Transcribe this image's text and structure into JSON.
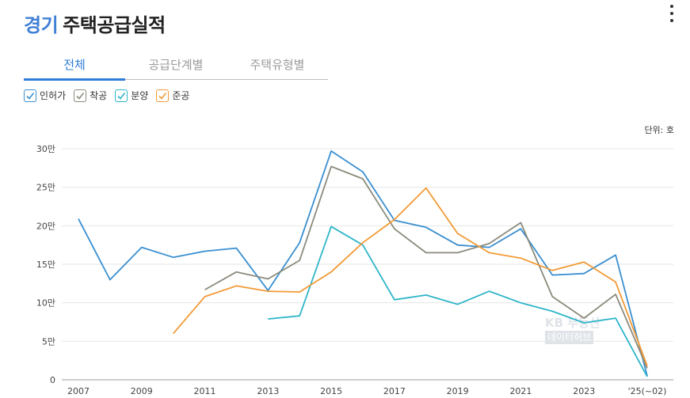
{
  "header": {
    "region": "경기",
    "title": "주택공급실적"
  },
  "tabs": [
    {
      "label": "전체",
      "active": true
    },
    {
      "label": "공급단계별",
      "active": false
    },
    {
      "label": "주택유형별",
      "active": false
    }
  ],
  "legend": [
    {
      "label": "인허가",
      "color": "#3a8fd0",
      "checked": true
    },
    {
      "label": "착공",
      "color": "#8c8a7c",
      "checked": true
    },
    {
      "label": "분양",
      "color": "#2fb5c9",
      "checked": true
    },
    {
      "label": "준공",
      "color": "#f29a35",
      "checked": true
    }
  ],
  "unit_label": "단위: 호",
  "watermark": {
    "line1": "KB 부동산",
    "line2": "데이터허브"
  },
  "chart_data": {
    "type": "line",
    "x": [
      "2007",
      "2008",
      "2009",
      "2010",
      "2011",
      "2012",
      "2013",
      "2014",
      "2015",
      "2016",
      "2017",
      "2018",
      "2019",
      "2020",
      "2021",
      "2022",
      "2023",
      "2024",
      "'25(~02)"
    ],
    "x_tick_labels": [
      "2007",
      "",
      "2009",
      "",
      "2011",
      "",
      "2013",
      "",
      "2015",
      "",
      "2017",
      "",
      "2019",
      "",
      "2021",
      "",
      "2023",
      "",
      "'25(~02)"
    ],
    "y_ticks": [
      {
        "value": 0,
        "label": "0"
      },
      {
        "value": 50000,
        "label": "5만"
      },
      {
        "value": 100000,
        "label": "10만"
      },
      {
        "value": 150000,
        "label": "15만"
      },
      {
        "value": 200000,
        "label": "20만"
      },
      {
        "value": 250000,
        "label": "25만"
      },
      {
        "value": 300000,
        "label": "30만"
      }
    ],
    "ylim": [
      0,
      300000
    ],
    "grid": true,
    "series": [
      {
        "name": "인허가",
        "color": "#3a8fd0",
        "values": [
          209000,
          130000,
          172000,
          159000,
          167000,
          171000,
          116000,
          178000,
          297000,
          270000,
          207000,
          198000,
          175000,
          172000,
          196000,
          136000,
          138000,
          162000,
          5000
        ]
      },
      {
        "name": "착공",
        "color": "#8c8a7c",
        "values": [
          null,
          null,
          null,
          null,
          117000,
          140000,
          131000,
          155000,
          277000,
          261000,
          196000,
          165000,
          165000,
          177000,
          204000,
          108000,
          80000,
          111000,
          15000
        ]
      },
      {
        "name": "분양",
        "color": "#2fb5c9",
        "values": [
          null,
          null,
          null,
          null,
          null,
          null,
          79000,
          83000,
          199000,
          175000,
          104000,
          110000,
          98000,
          115000,
          100000,
          89000,
          74000,
          80000,
          4000
        ]
      },
      {
        "name": "준공",
        "color": "#f29a35",
        "values": [
          null,
          null,
          null,
          60000,
          108000,
          122000,
          115000,
          114000,
          140000,
          178000,
          208000,
          249000,
          190000,
          165000,
          158000,
          142000,
          153000,
          127000,
          18000
        ]
      }
    ]
  }
}
